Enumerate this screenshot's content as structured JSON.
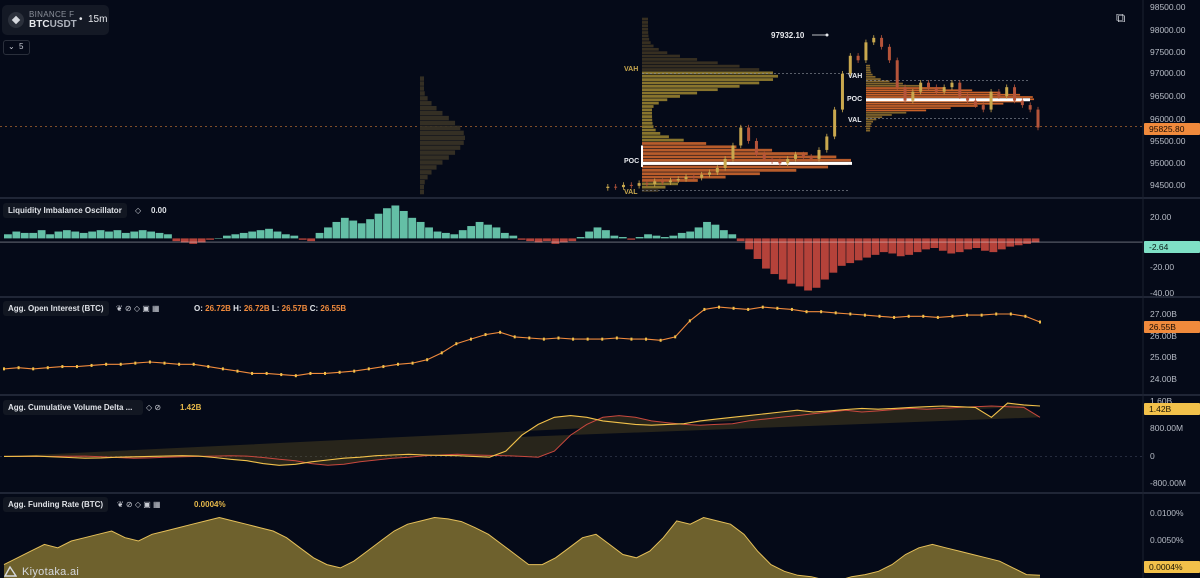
{
  "header": {
    "exchange": "BINANCE F",
    "symbol_base": "BTC",
    "symbol_quote": "USDT",
    "separator": "•",
    "timeframe": "15m",
    "collapse_chevron": "⌄",
    "indicator_count": "5",
    "layers_icon": "⧉"
  },
  "colors": {
    "background": "#050a18",
    "accent_orange": "#f08a3c",
    "teal": "#6fd3b6",
    "red": "#c9483e",
    "gold": "#c9a84e",
    "poc_line": "#ffffff"
  },
  "panes": {
    "price": {
      "axis_ticks": [
        "98500.00",
        "98000.00",
        "97500.00",
        "97000.00",
        "96500.00",
        "96000.00",
        "95500.00",
        "95000.00",
        "94500.00"
      ],
      "current_price": "95825.80",
      "high_annotation": "97932.10",
      "vp_labels": {
        "vah": "VAH",
        "poc": "POC",
        "val": "VAL"
      }
    },
    "lio": {
      "title": "Liquidity Imbalance Oscillator",
      "icon": "◇",
      "value": "0.00",
      "axis_ticks": [
        "20.00",
        "0.00",
        "-20.00",
        "-40.00"
      ],
      "current_tag": "-2.64"
    },
    "oi": {
      "title": "Agg. Open Interest (BTC)",
      "icons": [
        "leaf-icon",
        "drop-icon",
        "diamond-icon",
        "square-icon",
        "grid-icon"
      ],
      "icon_glyphs": "❦ ⊘ ◇ ▣ ▦",
      "o_label": "O:",
      "o_value": "26.72B",
      "h_label": "H:",
      "h_value": "26.72B",
      "l_label": "L:",
      "l_value": "26.57B",
      "c_label": "C:",
      "c_value": "26.55B",
      "axis_ticks": [
        "27.00B",
        "26.00B",
        "25.00B",
        "24.00B"
      ],
      "current_tag": "26.55B"
    },
    "cvd": {
      "title": "Agg. Cumulative Volume Delta ...",
      "icon_glyphs": "◇ ⊘",
      "value": "1.42B",
      "axis_ticks": [
        "1.60B",
        "800.00M",
        "0",
        "-800.00M"
      ],
      "current_tag": "1.42B"
    },
    "fr": {
      "title": "Agg. Funding Rate (BTC)",
      "icon_glyphs": "❦ ⊘ ◇ ▣ ▦",
      "value": "0.0004%",
      "axis_ticks": [
        "0.0100%",
        "0.0050%"
      ],
      "current_tag": "0.0004%"
    }
  },
  "watermark": "Kiyotaka.ai",
  "chart_data": [
    {
      "type": "line",
      "title": "BTCUSDT 15m",
      "ylim": [
        94250,
        98600
      ],
      "current": 95825.8,
      "high": 97932.1,
      "volume_profiles": [
        {
          "vah": 97000,
          "poc": 95000,
          "val": 94400
        },
        {
          "vah": 96850,
          "poc": 96420,
          "val": 96000
        }
      ],
      "values": [
        94450,
        94480,
        94470,
        94520,
        94500,
        94560,
        94540,
        94600,
        94580,
        94620,
        94650,
        94700,
        94680,
        94750,
        94800,
        94900,
        95100,
        95400,
        95800,
        95500,
        95200,
        95100,
        95050,
        95000,
        95100,
        95200,
        95150,
        95100,
        95300,
        95600,
        96200,
        97000,
        97400,
        97300,
        97700,
        97800,
        97600,
        97300,
        96700,
        96400,
        96600,
        96800,
        96700,
        96600,
        96700,
        96800,
        96500,
        96400,
        96300,
        96200,
        96600,
        96500,
        96700,
        96400,
        96300,
        96200,
        95800
      ]
    },
    {
      "type": "bar",
      "title": "Liquidity Imbalance Oscillator",
      "ylim": [
        -42,
        28
      ],
      "values": [
        3,
        5,
        4,
        4,
        6,
        3,
        5,
        6,
        5,
        4,
        5,
        6,
        5,
        6,
        4,
        5,
        6,
        5,
        4,
        3,
        -2,
        -3,
        -4,
        -3,
        -1,
        0,
        2,
        3,
        4,
        5,
        6,
        7,
        5,
        3,
        2,
        -1,
        -2,
        4,
        8,
        12,
        15,
        13,
        11,
        14,
        18,
        22,
        24,
        20,
        15,
        12,
        8,
        5,
        4,
        3,
        6,
        9,
        12,
        10,
        8,
        4,
        2,
        -1,
        -2,
        -3,
        -2,
        -4,
        -3,
        -2,
        1,
        5,
        8,
        6,
        2,
        1,
        -1,
        1,
        3,
        2,
        1,
        2,
        4,
        5,
        8,
        12,
        10,
        6,
        3,
        -2,
        -8,
        -15,
        -22,
        -26,
        -30,
        -33,
        -35,
        -38,
        -36,
        -30,
        -25,
        -20,
        -18,
        -16,
        -14,
        -12,
        -10,
        -11,
        -13,
        -12,
        -10,
        -8,
        -7,
        -9,
        -11,
        -10,
        -8,
        -7,
        -9,
        -10,
        -8,
        -6,
        -5,
        -4,
        -3
      ]
    },
    {
      "type": "line",
      "title": "Agg. Open Interest (BTC)",
      "ylim": [
        23.4,
        27.6
      ],
      "values": [
        24.5,
        24.55,
        24.5,
        24.55,
        24.6,
        24.6,
        24.65,
        24.7,
        24.7,
        24.75,
        24.8,
        24.75,
        24.7,
        24.7,
        24.6,
        24.5,
        24.4,
        24.3,
        24.3,
        24.25,
        24.2,
        24.3,
        24.3,
        24.35,
        24.4,
        24.5,
        24.6,
        24.7,
        24.75,
        24.9,
        25.2,
        25.6,
        25.8,
        26.0,
        26.1,
        25.9,
        25.85,
        25.8,
        25.85,
        25.8,
        25.8,
        25.8,
        25.85,
        25.8,
        25.8,
        25.75,
        25.9,
        26.6,
        27.1,
        27.2,
        27.15,
        27.1,
        27.2,
        27.15,
        27.1,
        27.0,
        27.0,
        26.95,
        26.9,
        26.85,
        26.8,
        26.75,
        26.8,
        26.8,
        26.75,
        26.8,
        26.85,
        26.85,
        26.9,
        26.9,
        26.8,
        26.55
      ]
    },
    {
      "type": "area",
      "title": "Agg. Cumulative Volume Delta",
      "ylim": [
        -1000,
        1700
      ],
      "values": [
        0,
        5,
        10,
        -10,
        -30,
        -50,
        -40,
        -20,
        -10,
        0,
        10,
        20,
        10,
        -30,
        -80,
        -120,
        -200,
        -250,
        -220,
        -150,
        -100,
        -50,
        -20,
        20,
        40,
        60,
        40,
        30,
        20,
        0,
        -20,
        150,
        600,
        900,
        1100,
        1150,
        1100,
        1000,
        950,
        900,
        880,
        900,
        920,
        1000,
        1050,
        1100,
        1150,
        1200,
        1250,
        1300,
        1250,
        1280,
        1320,
        1350,
        1330,
        1350,
        1380,
        1400,
        1420,
        1400,
        1380,
        1100,
        1500,
        1450,
        1420
      ]
    },
    {
      "type": "area",
      "title": "Agg. Funding Rate (BTC)",
      "ylim": [
        0,
        0.0125
      ],
      "values": [
        0.002,
        0.003,
        0.004,
        0.005,
        0.0045,
        0.0055,
        0.006,
        0.0065,
        0.007,
        0.006,
        0.0055,
        0.0065,
        0.007,
        0.0075,
        0.008,
        0.0085,
        0.009,
        0.0085,
        0.008,
        0.0075,
        0.007,
        0.006,
        0.0045,
        0.003,
        0.002,
        0.0015,
        0.0025,
        0.004,
        0.0055,
        0.007,
        0.008,
        0.0085,
        0.009,
        0.0088,
        0.0084,
        0.0075,
        0.0065,
        0.005,
        0.0035,
        0.002,
        0.002,
        0.003,
        0.0045,
        0.006,
        0.0065,
        0.005,
        0.0035,
        0.003,
        0.004,
        0.006,
        0.0085,
        0.008,
        0.009,
        0.0085,
        0.008,
        0.0065,
        0.004,
        0.002,
        0.001,
        0.0004,
        0.0002,
        -0.0003,
        -0.0004,
        0.0002,
        0.0005,
        0.001,
        0.002,
        0.0035,
        0.0045,
        0.005,
        0.0045,
        0.004,
        0.0035,
        0.003,
        0.0025,
        0.0015,
        0.0005,
        0.0004
      ]
    }
  ]
}
